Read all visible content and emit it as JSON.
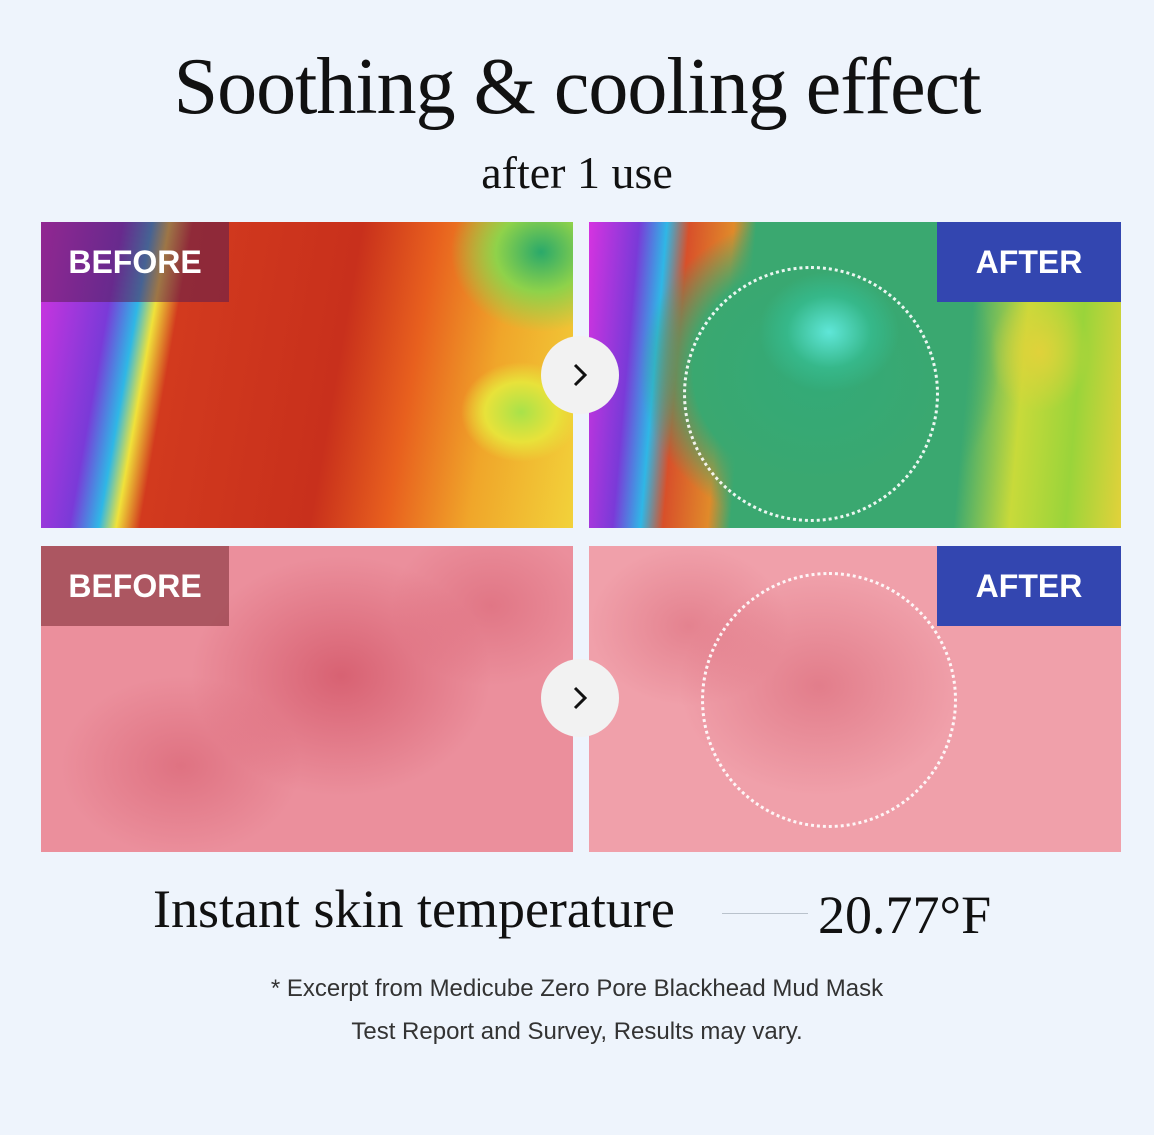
{
  "header": {
    "title": "Soothing & cooling effect",
    "subtitle": "after 1 use"
  },
  "panels": {
    "before_label": "BEFORE",
    "after_label": "AFTER",
    "arrow_icon": "chevron-right-icon"
  },
  "result": {
    "label": "Instant skin temperature",
    "value": "20.77°F"
  },
  "footnote": {
    "line1": "* Excerpt from Medicube Zero Pore Blackhead Mud Mask",
    "line2": "Test Report and Survey, Results may vary."
  },
  "colors": {
    "background": "#eef4fc",
    "after_badge": "#3346b0"
  }
}
